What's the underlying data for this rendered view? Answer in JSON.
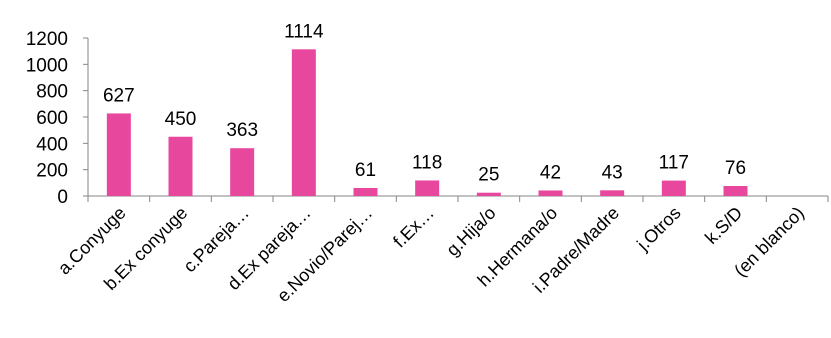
{
  "chart_data": {
    "type": "bar",
    "categories": [
      "a.Conyuge",
      "b.Ex conyuge",
      "c.Pareja…",
      "d.Ex pareja…",
      "e.Novio/Parej…",
      "f.Ex…",
      "g.Hija/o",
      "h.Hermana/o",
      "i.Padre/Madre",
      "j.Otros",
      "k.S/D",
      "(en blanco)"
    ],
    "values": [
      627,
      450,
      363,
      1114,
      61,
      118,
      25,
      42,
      43,
      117,
      76,
      null
    ],
    "data_labels": [
      "627",
      "450",
      "363",
      "1114",
      "61",
      "118",
      "25",
      "42",
      "43",
      "117",
      "76",
      ""
    ],
    "title": "",
    "xlabel": "",
    "ylabel": "",
    "ylim": [
      0,
      1200
    ],
    "yticks": [
      0,
      200,
      400,
      600,
      800,
      1000,
      1200
    ],
    "grid": false,
    "legend": "none",
    "bar_color": "#E8479E",
    "axis_color": "#868686"
  }
}
